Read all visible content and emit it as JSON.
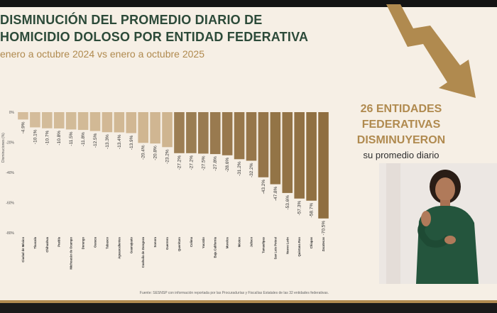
{
  "header": {
    "title_line1": "DISMINUCIÓN DEL PROMEDIO DIARIO DE",
    "title_line2": "HOMICIDIO DOLOSO POR ENTIDAD FEDERATIVA",
    "subtitle": "enero a octubre 2024 vs enero a octubre 2025"
  },
  "callout": {
    "line1": "26 ENTIDADES",
    "line2": "FEDERATIVAS",
    "line3": "DISMINUYERON",
    "line4": "su promedio diario"
  },
  "source": "Fuente: SESNSP con información reportada por las Procuradurías y Fiscalías Estatales de las 32 entidades federativas.",
  "colors": {
    "title": "#2c4a39",
    "accent": "#b08a4f",
    "bar_light": "#c9ac83",
    "bar_dark": "#8f6e40",
    "background": "#f6efe5"
  },
  "chart_data": {
    "type": "bar",
    "title": "",
    "xlabel": "",
    "ylabel": "Disminuciones (%)",
    "ylim": [
      -80,
      0
    ],
    "yticks": [
      0,
      -20,
      -40,
      -60,
      -80
    ],
    "ytick_labels": [
      "0%",
      "-20%",
      "-40%",
      "-60%",
      "-80%"
    ],
    "grid": false,
    "categories": [
      "Ciudad de México",
      "Tlaxcala",
      "Chihuahua",
      "Puebla",
      "Michoacán de Ocampo",
      "Durango",
      "Oaxaca",
      "Tabasco",
      "Aguascalientes",
      "Guanajuato",
      "Coahuila de Zaragoza",
      "Sonora",
      "Guerrero",
      "Querétaro",
      "Colima",
      "Yucatán",
      "Baja California",
      "Morelos",
      "México",
      "Jalisco",
      "Tamaulipas",
      "San Luis Potosí",
      "Nuevo León",
      "Quintana Roo",
      "Chiapas",
      "Zacatecas"
    ],
    "values": [
      -4.9,
      -10.1,
      -10.7,
      -10.8,
      -11.5,
      -11.8,
      -12.5,
      -13.3,
      -13.4,
      -13.9,
      -20.4,
      -20.8,
      -23.2,
      -27.2,
      -27.2,
      -27.5,
      -27.8,
      -28.6,
      -31.2,
      -32.2,
      -43.2,
      -47.8,
      -53.6,
      -57.3,
      -58.7,
      -70.5
    ],
    "value_labels": [
      "-4.9%",
      "-10.1%",
      "-10.7%",
      "-10.8%",
      "-11.5%",
      "-11.8%",
      "-12.5%",
      "-13.3%",
      "-13.4%",
      "-13.9%",
      "-20.4%",
      "-20.8%",
      "-23.2%",
      "-27.2%",
      "-27.2%",
      "-27.5%",
      "-27.8%",
      "-28.6%",
      "-31.2%",
      "-32.2%",
      "-43.2%",
      "-47.8%",
      "-53.6%",
      "-57.3%",
      "-58.7%",
      "-70.5%"
    ]
  }
}
